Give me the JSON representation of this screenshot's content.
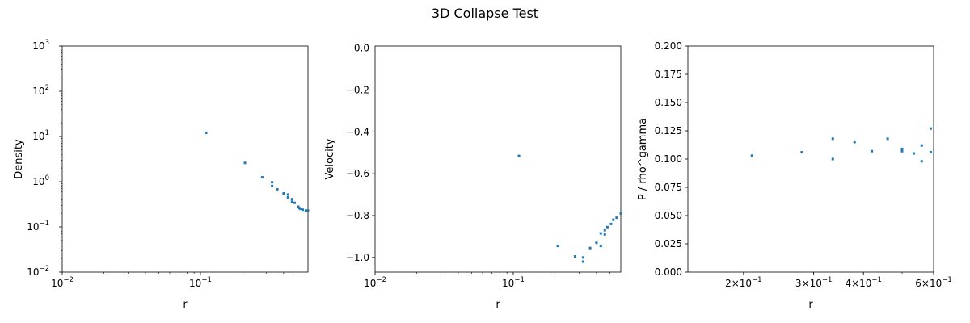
{
  "figure": {
    "title": "3D Collapse Test"
  },
  "marker_color": "#1f77b4",
  "chart_data": [
    {
      "type": "scatter",
      "title": "",
      "xlabel": "r",
      "ylabel": "Density",
      "xscale": "log",
      "yscale": "log",
      "xlim": [
        0.01,
        0.6
      ],
      "ylim": [
        0.01,
        1000
      ],
      "xticks": [
        {
          "value": 0.01,
          "base": "10",
          "exp": "−2"
        },
        {
          "value": 0.1,
          "base": "10",
          "exp": "−1"
        }
      ],
      "yticks": [
        {
          "value": 0.01,
          "base": "10",
          "exp": "−2"
        },
        {
          "value": 0.1,
          "base": "10",
          "exp": "−1"
        },
        {
          "value": 1,
          "base": "10",
          "exp": "0"
        },
        {
          "value": 10,
          "base": "10",
          "exp": "1"
        },
        {
          "value": 100,
          "base": "10",
          "exp": "2"
        },
        {
          "value": 1000,
          "base": "10",
          "exp": "3"
        }
      ],
      "grid": false,
      "x": [
        0.11,
        0.21,
        0.28,
        0.33,
        0.33,
        0.36,
        0.4,
        0.43,
        0.43,
        0.46,
        0.46,
        0.48,
        0.51,
        0.52,
        0.53,
        0.55,
        0.58,
        0.6
      ],
      "y": [
        12,
        2.6,
        1.25,
        0.97,
        0.8,
        0.68,
        0.55,
        0.52,
        0.45,
        0.41,
        0.36,
        0.34,
        0.28,
        0.26,
        0.25,
        0.24,
        0.23,
        0.23
      ]
    },
    {
      "type": "scatter",
      "title": "",
      "xlabel": "r",
      "ylabel": "Velocity",
      "xscale": "log",
      "yscale": "linear",
      "xlim": [
        0.01,
        0.6
      ],
      "ylim": [
        -1.07,
        0.01
      ],
      "xticks": [
        {
          "value": 0.01,
          "base": "10",
          "exp": "−2"
        },
        {
          "value": 0.1,
          "base": "10",
          "exp": "−1"
        }
      ],
      "yticks": [
        {
          "value": 0.0,
          "label": "0.0"
        },
        {
          "value": -0.2,
          "label": "−0.2"
        },
        {
          "value": -0.4,
          "label": "−0.4"
        },
        {
          "value": -0.6,
          "label": "−0.6"
        },
        {
          "value": -0.8,
          "label": "−0.8"
        },
        {
          "value": -1.0,
          "label": "−1.0"
        }
      ],
      "grid": false,
      "x": [
        0.11,
        0.21,
        0.28,
        0.32,
        0.32,
        0.36,
        0.4,
        0.43,
        0.43,
        0.46,
        0.46,
        0.48,
        0.51,
        0.53,
        0.56,
        0.6
      ],
      "y": [
        -0.515,
        -0.945,
        -0.995,
        -1.0,
        -1.02,
        -0.955,
        -0.93,
        -0.945,
        -0.885,
        -0.89,
        -0.87,
        -0.855,
        -0.84,
        -0.82,
        -0.81,
        -0.79
      ]
    },
    {
      "type": "scatter",
      "title": "",
      "xlabel": "r",
      "ylabel": "P / rho^gamma",
      "xscale": "log",
      "yscale": "linear",
      "xlim": [
        0.145,
        0.6
      ],
      "ylim": [
        0.0,
        0.2
      ],
      "xticks": [
        {
          "value": 0.2,
          "base": "2×10",
          "exp": "−1"
        },
        {
          "value": 0.3,
          "base": "3×10",
          "exp": "−1"
        },
        {
          "value": 0.4,
          "base": "4×10",
          "exp": "−1"
        },
        {
          "value": 0.6,
          "base": "6×10",
          "exp": "−1"
        }
      ],
      "yticks": [
        {
          "value": 0.0,
          "label": "0.000"
        },
        {
          "value": 0.025,
          "label": "0.025"
        },
        {
          "value": 0.05,
          "label": "0.050"
        },
        {
          "value": 0.075,
          "label": "0.075"
        },
        {
          "value": 0.1,
          "label": "0.100"
        },
        {
          "value": 0.125,
          "label": "0.125"
        },
        {
          "value": 0.15,
          "label": "0.150"
        },
        {
          "value": 0.175,
          "label": "0.175"
        },
        {
          "value": 0.2,
          "label": "0.200"
        }
      ],
      "grid": false,
      "x": [
        0.21,
        0.28,
        0.335,
        0.335,
        0.38,
        0.42,
        0.46,
        0.5,
        0.5,
        0.535,
        0.56,
        0.56,
        0.59,
        0.59
      ],
      "y": [
        0.103,
        0.106,
        0.118,
        0.1,
        0.115,
        0.107,
        0.118,
        0.109,
        0.107,
        0.105,
        0.112,
        0.098,
        0.127,
        0.106
      ]
    }
  ]
}
